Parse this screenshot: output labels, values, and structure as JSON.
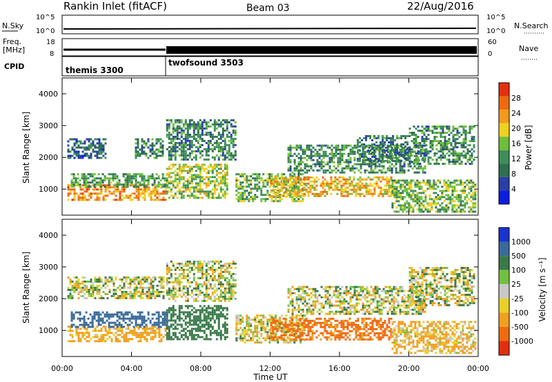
{
  "header": {
    "station": "Rankin Inlet (fitACF)",
    "beam": "Beam 03",
    "date": "22/Aug/2016"
  },
  "panels": {
    "nsky": {
      "label": "N.Sky",
      "ticks": [
        "10^5",
        "10^0"
      ],
      "right_label": "N.Search",
      "right_ticks": [
        "10^5",
        "10^0"
      ]
    },
    "freq": {
      "label_line1": "Freq.",
      "label_line2": "[MHz]",
      "ticks": [
        "18",
        "8"
      ],
      "right_label": "Nave",
      "right_ticks": [
        "60",
        "0"
      ]
    },
    "cpid": {
      "label": "CPID",
      "programs": [
        "themis 3300",
        "twofsound 3503"
      ]
    },
    "power": {
      "ylabel": "Slant Range [km]",
      "cbar_label": "Power [dB]",
      "cbar_ticks": [
        "28",
        "24",
        "20",
        "16",
        "12",
        "8",
        "4"
      ]
    },
    "velocity": {
      "ylabel": "Slant Range [km]",
      "cbar_label": "Velocity [m s⁻¹]",
      "cbar_ticks": [
        "1000",
        "500",
        "100",
        "25",
        "-25",
        "-100",
        "-500",
        "-1000"
      ]
    }
  },
  "xaxis": {
    "label": "Time UT",
    "ticks": [
      "00:00",
      "04:00",
      "08:00",
      "12:00",
      "16:00",
      "20:00",
      "00:00"
    ]
  },
  "yaxis_ticks": [
    "1000",
    "2000",
    "3000",
    "4000"
  ],
  "colors": {
    "power": [
      "#0a1fe0",
      "#2a3fa8",
      "#2f6f4f",
      "#3e8e5a",
      "#6fbf3a",
      "#f0d020",
      "#f29a1c",
      "#f06a10",
      "#e43010"
    ],
    "velocity": [
      "#1a34d0",
      "#3a6a9a",
      "#3a7a4a",
      "#73c040",
      "#c8c8c8",
      "#e8d028",
      "#f0a020",
      "#f06a10",
      "#e03010"
    ]
  },
  "chart_data": [
    {
      "type": "heatmap",
      "title": "Rankin Inlet (fitACF) Beam 03 22/Aug/2016",
      "xlabel": "Time UT",
      "ylabel": "Slant Range [km]",
      "x_range": [
        "00:00",
        "24:00"
      ],
      "ylim": [
        180,
        4500
      ],
      "colorbar": {
        "label": "Power [dB]",
        "range": [
          0,
          30
        ]
      },
      "bands": [
        {
          "t0": 0.3,
          "t1": 6,
          "range": [
            650,
            1150
          ],
          "value": 22
        },
        {
          "t0": 0.5,
          "t1": 6,
          "range": [
            1100,
            1500
          ],
          "value": 12
        },
        {
          "t0": 0.3,
          "t1": 2.5,
          "range": [
            2000,
            2600
          ],
          "value": 8
        },
        {
          "t0": 4.2,
          "t1": 5.8,
          "range": [
            2000,
            2600
          ],
          "value": 10
        },
        {
          "t0": 6,
          "t1": 9.5,
          "range": [
            700,
            1800
          ],
          "value": 16
        },
        {
          "t0": 6,
          "t1": 10,
          "range": [
            1900,
            3200
          ],
          "value": 10
        },
        {
          "t0": 10,
          "t1": 14,
          "range": [
            600,
            1500
          ],
          "value": 14
        },
        {
          "t0": 12,
          "t1": 19,
          "range": [
            800,
            1400
          ],
          "value": 20
        },
        {
          "t0": 13,
          "t1": 21,
          "range": [
            1500,
            2400
          ],
          "value": 11
        },
        {
          "t0": 17,
          "t1": 20,
          "range": [
            1900,
            2700
          ],
          "value": 9
        },
        {
          "t0": 19,
          "t1": 23.8,
          "range": [
            300,
            1300
          ],
          "value": 14
        },
        {
          "t0": 20,
          "t1": 23.8,
          "range": [
            1800,
            3000
          ],
          "value": 11
        }
      ]
    },
    {
      "type": "heatmap",
      "title": "Rankin Inlet (fitACF) Beam 03 22/Aug/2016",
      "xlabel": "Time UT",
      "ylabel": "Slant Range [km]",
      "x_range": [
        "00:00",
        "24:00"
      ],
      "ylim": [
        180,
        4500
      ],
      "colorbar": {
        "label": "Velocity [m s⁻¹]",
        "ticks": [
          1000,
          500,
          100,
          25,
          -25,
          -100,
          -500,
          -1000
        ]
      },
      "bands": [
        {
          "t0": 0.3,
          "t1": 6,
          "range": [
            650,
            1150
          ],
          "value": -200
        },
        {
          "t0": 0.5,
          "t1": 6,
          "range": [
            1100,
            1600
          ],
          "value": 800
        },
        {
          "t0": 0.3,
          "t1": 5.8,
          "range": [
            2000,
            2700
          ],
          "value": 0
        },
        {
          "t0": 6,
          "t1": 9.5,
          "range": [
            700,
            1800
          ],
          "value": 300
        },
        {
          "t0": 6,
          "t1": 10,
          "range": [
            1900,
            3200
          ],
          "value": 0
        },
        {
          "t0": 10,
          "t1": 14,
          "range": [
            600,
            1500
          ],
          "value": -60
        },
        {
          "t0": 12,
          "t1": 19,
          "range": [
            700,
            1400
          ],
          "value": -600
        },
        {
          "t0": 13,
          "t1": 21,
          "range": [
            1500,
            2400
          ],
          "value": 0
        },
        {
          "t0": 19,
          "t1": 23.8,
          "range": [
            300,
            1300
          ],
          "value": -150
        },
        {
          "t0": 20,
          "t1": 23.8,
          "range": [
            1800,
            3000
          ],
          "value": 0
        }
      ]
    }
  ]
}
